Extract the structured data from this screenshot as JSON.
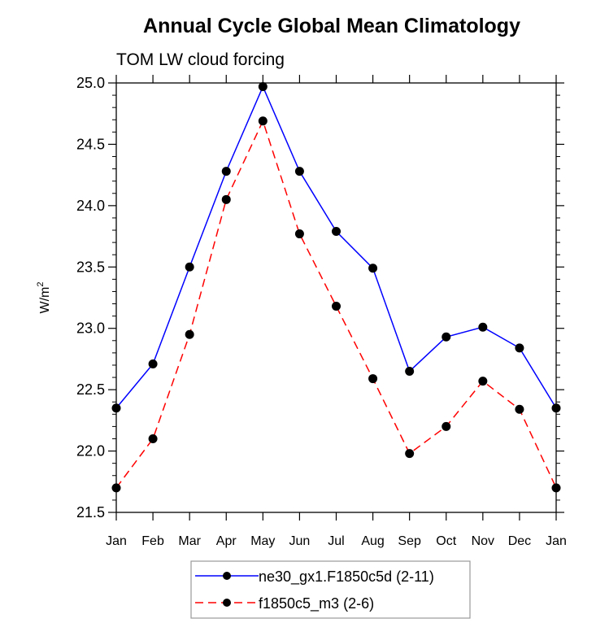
{
  "chart_data": {
    "type": "line",
    "title": "Annual Cycle Global Mean Climatology",
    "subtitle": "TOM LW cloud forcing",
    "xlabel": "",
    "ylabel": "W/m",
    "ylabel_superscript": "2",
    "ylim": [
      21.5,
      25.0
    ],
    "yticks": [
      "21.5",
      "22.0",
      "22.5",
      "23.0",
      "23.5",
      "24.0",
      "24.5",
      "25.0"
    ],
    "ytick_values": [
      21.5,
      22.0,
      22.5,
      23.0,
      23.5,
      24.0,
      24.5,
      25.0
    ],
    "y_minor_step": 0.1,
    "categories": [
      "Jan",
      "Feb",
      "Mar",
      "Apr",
      "May",
      "Jun",
      "Jul",
      "Aug",
      "Sep",
      "Oct",
      "Nov",
      "Dec",
      "Jan"
    ],
    "grid": false,
    "legend_position": "bottom-center",
    "series": [
      {
        "name": "ne30_gx1.F1850c5d (2-11)",
        "color": "#0000ff",
        "dash": "solid",
        "marker": "filled-circle",
        "values": [
          22.35,
          22.71,
          23.5,
          24.28,
          24.97,
          24.28,
          23.79,
          23.49,
          22.65,
          22.93,
          23.01,
          22.84,
          22.35
        ]
      },
      {
        "name": "f1850c5_m3 (2-6)",
        "color": "#ff0000",
        "dash": "dashed",
        "marker": "filled-circle",
        "values": [
          21.7,
          22.1,
          22.95,
          24.05,
          24.69,
          23.77,
          23.18,
          22.59,
          21.98,
          22.2,
          22.57,
          22.34,
          21.7
        ]
      }
    ]
  }
}
